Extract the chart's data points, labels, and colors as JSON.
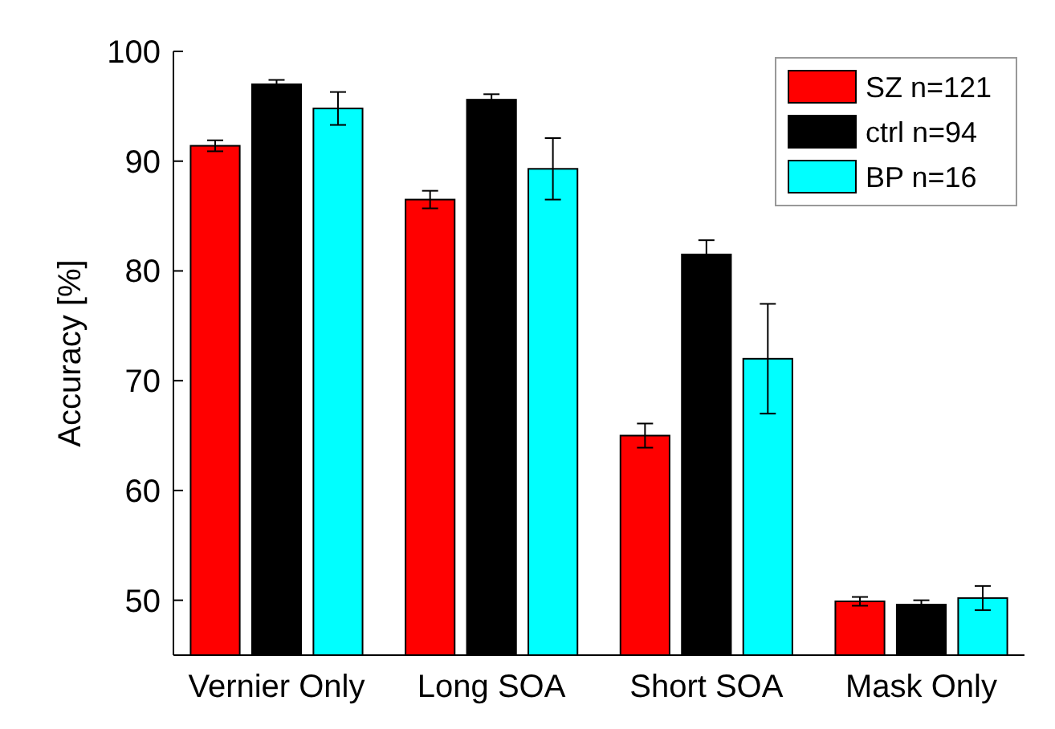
{
  "chart_data": {
    "type": "bar",
    "ylabel": "Accuracy [%]",
    "categories": [
      "Vernier Only",
      "Long SOA",
      "Short SOA",
      "Mask Only"
    ],
    "series": [
      {
        "name": "SZ n=121",
        "color": "#ff0000",
        "values": [
          91.4,
          86.5,
          65.0,
          49.9
        ],
        "errors": [
          0.5,
          0.8,
          1.1,
          0.4
        ]
      },
      {
        "name": "ctrl n=94",
        "color": "#000000",
        "values": [
          97.0,
          95.6,
          81.5,
          49.6
        ],
        "errors": [
          0.4,
          0.5,
          1.3,
          0.4
        ]
      },
      {
        "name": "BP n=16",
        "color": "#00ffff",
        "values": [
          94.8,
          89.3,
          72.0,
          50.2
        ],
        "errors": [
          1.5,
          2.8,
          5.0,
          1.1
        ]
      }
    ],
    "ylim": [
      45,
      100
    ],
    "yticks": [
      50,
      60,
      70,
      80,
      90,
      100
    ],
    "grid": false,
    "legend": "top right"
  }
}
